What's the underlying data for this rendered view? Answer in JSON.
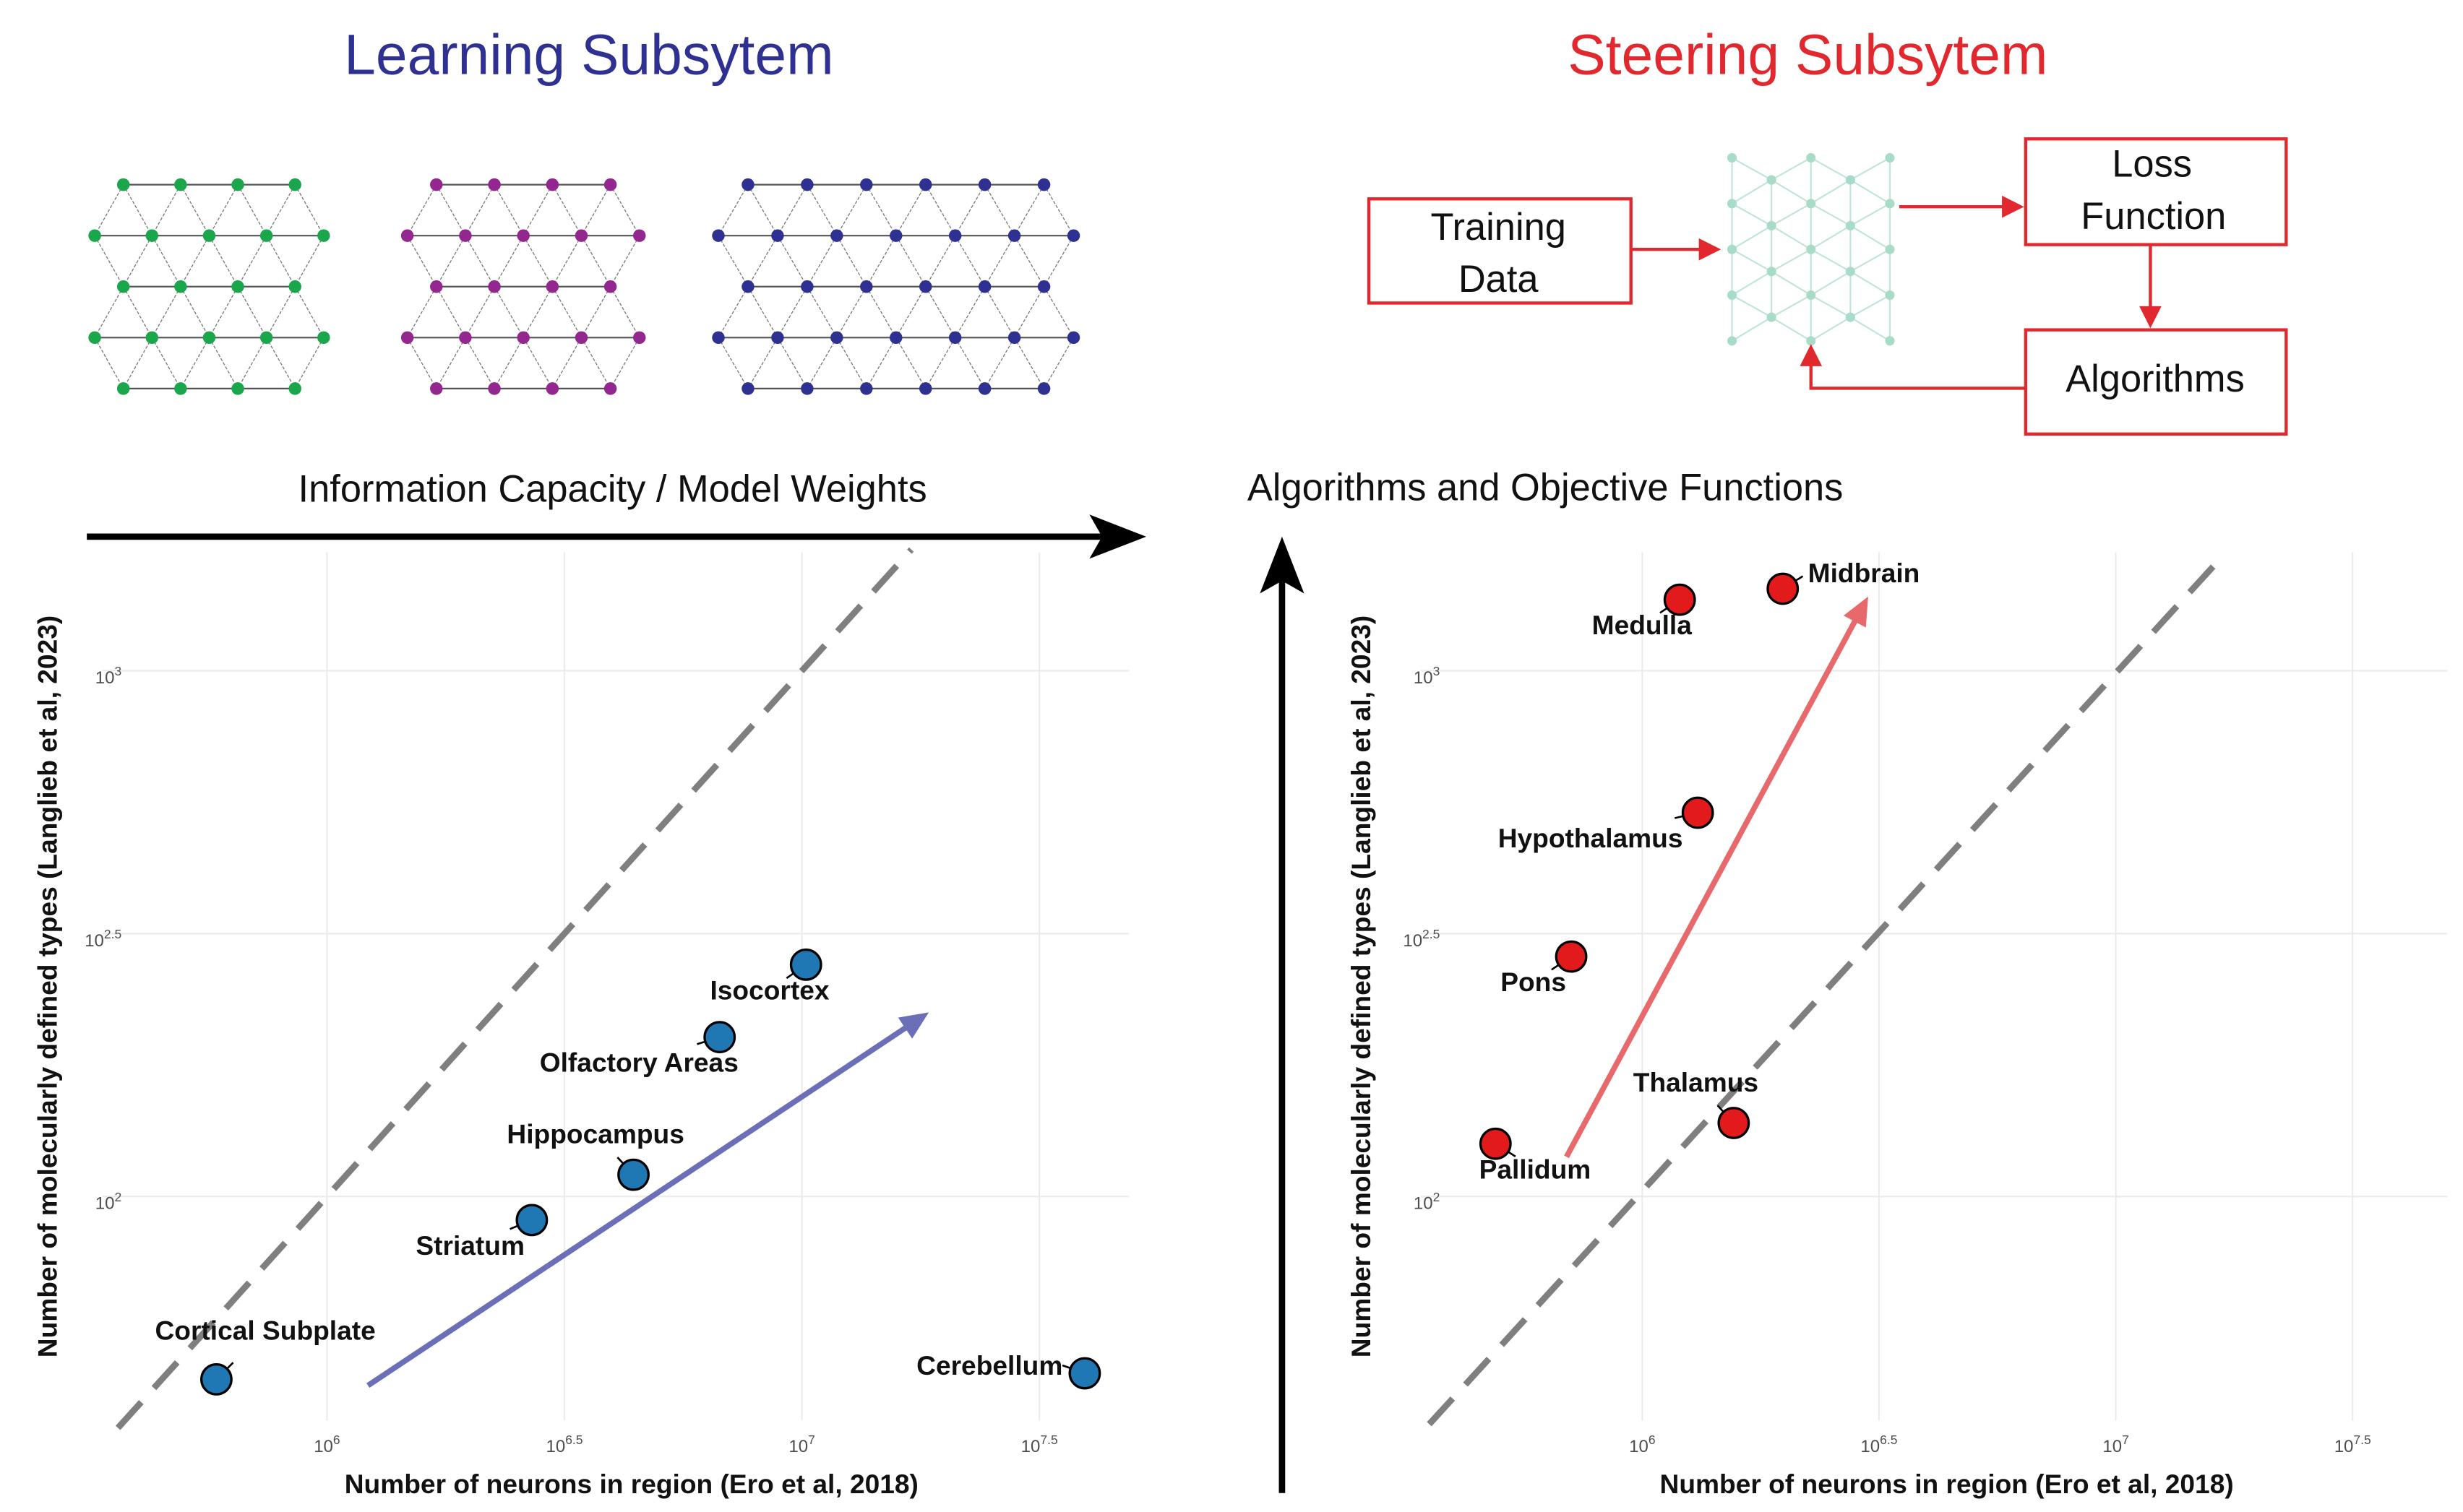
{
  "learning": {
    "title": "Learning Subsytem",
    "arrow_label": "Information Capacity / Model Weights"
  },
  "steering": {
    "title": "Steering Subsytem",
    "arrow_label": "Algorithms and Objective Functions",
    "boxes": [
      {
        "lines": [
          "Training",
          "Data"
        ]
      },
      {
        "lines": [
          "Loss",
          "Function"
        ]
      },
      {
        "lines": [
          "Algorithms"
        ]
      }
    ]
  },
  "chart_data": [
    {
      "type": "scatter",
      "x_label": "Number of neurons in region (Ero et al, 2018)",
      "y_label": "Number of molecularly defined types (Langlieb et al, 2023)",
      "log_x": true,
      "log_y": true,
      "grid": true,
      "xlim": [
        337000,
        48800000
      ],
      "ylim": [
        37.5,
        1679
      ],
      "xticks": [
        {
          "value": 1000000,
          "label": "10^6"
        },
        {
          "value": 3162278,
          "label": "10^6.5"
        },
        {
          "value": 10000000,
          "label": "10^7"
        },
        {
          "value": 31622777,
          "label": "10^7.5"
        }
      ],
      "yticks": [
        {
          "value": 100,
          "label": "10^2"
        },
        {
          "value": 316.23,
          "label": "10^2.5"
        },
        {
          "value": 1000,
          "label": "10^3"
        }
      ],
      "color": "#1f78b4",
      "labels": [
        "Cortical Subplate",
        "Striatum",
        "Hippocampus",
        "Olfactory Areas",
        "Isocortex",
        "Cerebellum"
      ],
      "x": [
        585000,
        2700000,
        4420000,
        6710000,
        10200000,
        39400000
      ],
      "values": [
        44.9,
        90.2,
        110,
        201,
        276,
        46.1
      ],
      "reference_line": {
        "color": "#7f7f7f",
        "x": [
          363000,
          17000000
        ],
        "y": [
          36.3,
          1700
        ]
      },
      "trend_arrow": {
        "color": "#6a6fb8",
        "x": [
          1220000,
          18500000
        ],
        "y": [
          43.7,
          224
        ]
      }
    },
    {
      "type": "scatter",
      "x_label": "Number of neurons in region (Ero et al, 2018)",
      "y_label": "Number of molecularly defined types (Langlieb et al, 2023)",
      "log_x": true,
      "log_y": true,
      "grid": true,
      "xlim": [
        341000,
        50100000
      ],
      "ylim": [
        37.5,
        1679
      ],
      "xticks": [
        {
          "value": 1000000,
          "label": "10^6"
        },
        {
          "value": 3162278,
          "label": "10^6.5"
        },
        {
          "value": 10000000,
          "label": "10^7"
        },
        {
          "value": 31622777,
          "label": "10^7.5"
        }
      ],
      "yticks": [
        {
          "value": 100,
          "label": "10^2"
        },
        {
          "value": 316.23,
          "label": "10^2.5"
        },
        {
          "value": 1000,
          "label": "10^3"
        }
      ],
      "color": "#e31a1c",
      "labels": [
        "Medulla",
        "Midbrain",
        "Hypothalamus",
        "Pons",
        "Thalamus",
        "Pallidum"
      ],
      "x": [
        1200000,
        1980000,
        1310000,
        708000,
        1560000,
        490000
      ],
      "values": [
        1365,
        1432,
        537,
        286,
        138,
        126
      ],
      "reference_line": {
        "color": "#7f7f7f",
        "x": [
          355000,
          16900000
        ],
        "y": [
          36.9,
          1660
        ]
      },
      "trend_arrow": {
        "color": "#e8696b",
        "x": [
          692000,
          3000000
        ],
        "y": [
          119,
          1384
        ]
      }
    }
  ]
}
